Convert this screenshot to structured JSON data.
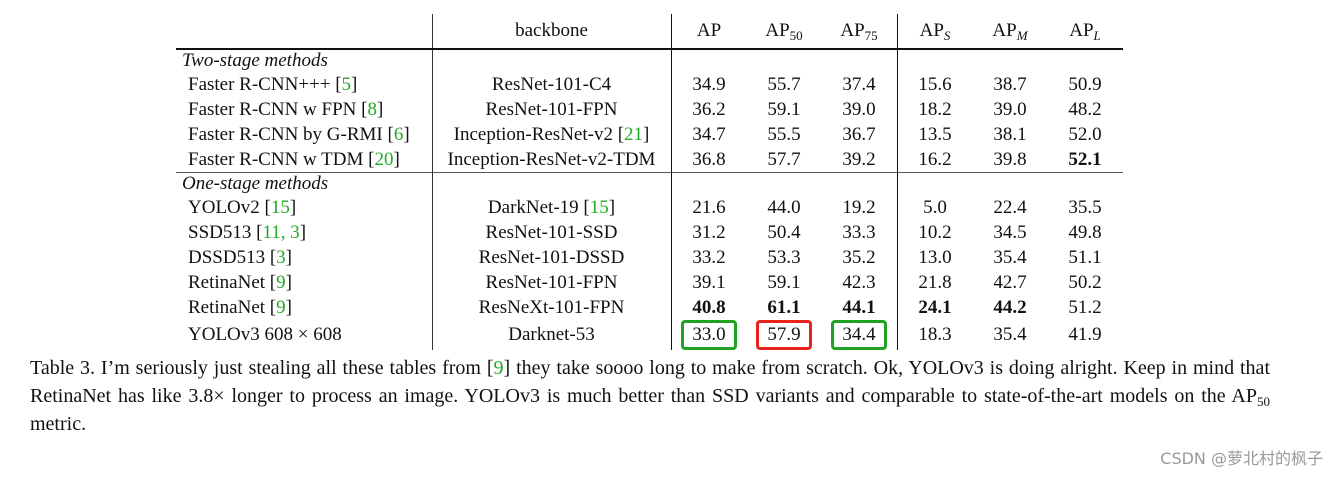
{
  "table": {
    "columns": [
      "",
      "backbone",
      "AP",
      "AP50",
      "AP75",
      "APS",
      "APM",
      "APL"
    ],
    "sections": [
      {
        "title": "Two-stage methods",
        "rows": [
          {
            "method": "Faster R-CNN+++ ",
            "cite": "5",
            "backbone": "ResNet-101-C4",
            "bcite": "",
            "values": [
              "34.9",
              "55.7",
              "37.4",
              "15.6",
              "38.7",
              "50.9"
            ],
            "bold": []
          },
          {
            "method": "Faster R-CNN w FPN ",
            "cite": "8",
            "backbone": "ResNet-101-FPN",
            "bcite": "",
            "values": [
              "36.2",
              "59.1",
              "39.0",
              "18.2",
              "39.0",
              "48.2"
            ],
            "bold": []
          },
          {
            "method": "Faster R-CNN by G-RMI ",
            "cite": "6",
            "backbone": "Inception-ResNet-v2 ",
            "bcite": "21",
            "values": [
              "34.7",
              "55.5",
              "36.7",
              "13.5",
              "38.1",
              "52.0"
            ],
            "bold": []
          },
          {
            "method": "Faster R-CNN w TDM ",
            "cite": "20",
            "backbone": "Inception-ResNet-v2-TDM",
            "bcite": "",
            "values": [
              "36.8",
              "57.7",
              "39.2",
              "16.2",
              "39.8",
              "52.1"
            ],
            "bold": [
              5
            ]
          }
        ]
      },
      {
        "title": "One-stage methods",
        "rows": [
          {
            "method": "YOLOv2 ",
            "cite": "15",
            "backbone": "DarkNet-19 ",
            "bcite": "15",
            "values": [
              "21.6",
              "44.0",
              "19.2",
              "5.0",
              "22.4",
              "35.5"
            ],
            "bold": []
          },
          {
            "method": "SSD513 ",
            "cite": "11, 3",
            "backbone": "ResNet-101-SSD",
            "bcite": "",
            "values": [
              "31.2",
              "50.4",
              "33.3",
              "10.2",
              "34.5",
              "49.8"
            ],
            "bold": []
          },
          {
            "method": "DSSD513 ",
            "cite": "3",
            "backbone": "ResNet-101-DSSD",
            "bcite": "",
            "values": [
              "33.2",
              "53.3",
              "35.2",
              "13.0",
              "35.4",
              "51.1"
            ],
            "bold": []
          },
          {
            "method": "RetinaNet ",
            "cite": "9",
            "backbone": "ResNet-101-FPN",
            "bcite": "",
            "values": [
              "39.1",
              "59.1",
              "42.3",
              "21.8",
              "42.7",
              "50.2"
            ],
            "bold": []
          },
          {
            "method": "RetinaNet ",
            "cite": "9",
            "backbone": "ResNeXt-101-FPN",
            "bcite": "",
            "values": [
              "40.8",
              "61.1",
              "44.1",
              "24.1",
              "44.2",
              "51.2"
            ],
            "bold": [
              0,
              1,
              2,
              3,
              4
            ]
          },
          {
            "method": "YOLOv3 608 × 608",
            "cite": "",
            "backbone": "Darknet-53",
            "bcite": "",
            "values": [
              "33.0",
              "57.9",
              "34.4",
              "18.3",
              "35.4",
              "41.9"
            ],
            "bold": [],
            "boxes": {
              "0": "green",
              "1": "red",
              "2": "green"
            }
          }
        ]
      }
    ]
  },
  "caption": {
    "part1": "Table 3. I’m seriously just stealing all these tables from [",
    "cite": "9",
    "part2": "] they take soooo long to make from scratch. Ok, YOLOv3 is doing alright. Keep in mind that RetinaNet has like 3.8× longer to process an image. YOLOv3 is much better than SSD variants and comparable to state-of-the-art models on the AP",
    "sub": "50",
    "part3": " metric."
  },
  "watermark": "CSDN @萝北村的枫子",
  "colors": {
    "cite": "#22aa22",
    "box_green": "#21a121",
    "box_red": "#e8231c"
  }
}
